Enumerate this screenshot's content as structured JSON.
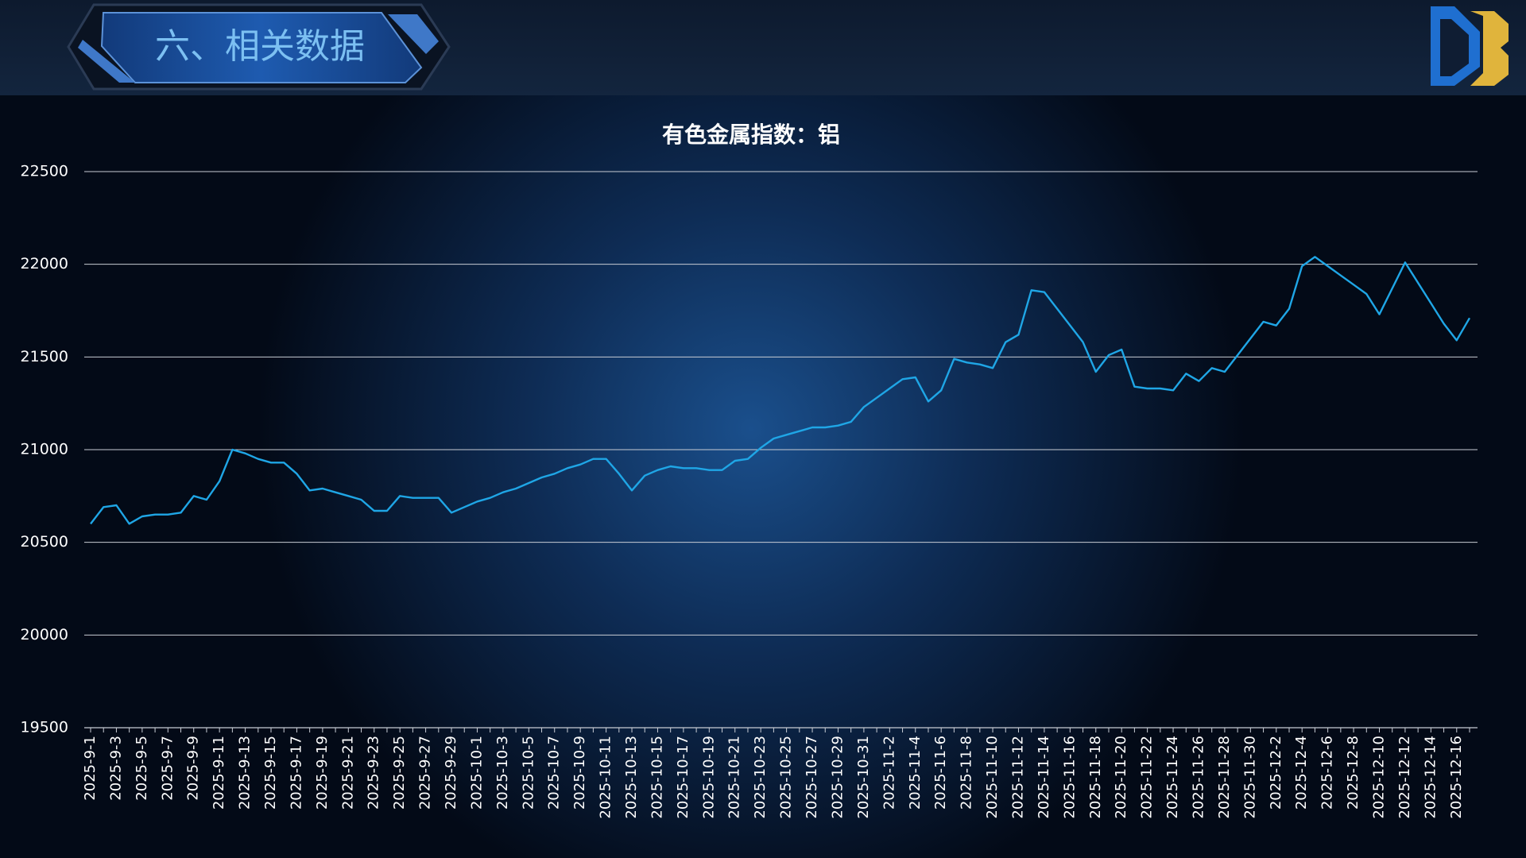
{
  "header": {
    "title": "六、相关数据"
  },
  "chart_data": {
    "type": "line",
    "title": "有色金属指数：铝",
    "categories": [
      "2025-9-1",
      null,
      "2025-9-3",
      null,
      "2025-9-5",
      null,
      "2025-9-7",
      null,
      "2025-9-9",
      null,
      "2025-9-11",
      null,
      "2025-9-13",
      null,
      "2025-9-15",
      null,
      "2025-9-17",
      null,
      "2025-9-19",
      null,
      "2025-9-21",
      null,
      "2025-9-23",
      null,
      "2025-9-25",
      null,
      "2025-9-27",
      null,
      "2025-9-29",
      null,
      "2025-10-1",
      null,
      "2025-10-3",
      null,
      "2025-10-5",
      null,
      "2025-10-7",
      null,
      "2025-10-9",
      null,
      "2025-10-11",
      null,
      "2025-10-13",
      null,
      "2025-10-15",
      null,
      "2025-10-17",
      null,
      "2025-10-19",
      null,
      "2025-10-21",
      null,
      "2025-10-23",
      null,
      "2025-10-25",
      null,
      "2025-10-27",
      null,
      "2025-10-29",
      null,
      "2025-10-31",
      null,
      "2025-11-2",
      null,
      "2025-11-4",
      null,
      "2025-11-6",
      null,
      "2025-11-8",
      null,
      "2025-11-10",
      null,
      "2025-11-12",
      null,
      "2025-11-14",
      null,
      "2025-11-16",
      null,
      "2025-11-18",
      null,
      "2025-11-20",
      null,
      "2025-11-22",
      null,
      "2025-11-24",
      null,
      "2025-11-26",
      null,
      "2025-11-28",
      null,
      "2025-11-30",
      null,
      "2025-12-2",
      null,
      "2025-12-4",
      null,
      "2025-12-6",
      null,
      "2025-12-8",
      null,
      "2025-12-10",
      null,
      "2025-12-12",
      null,
      "2025-12-14",
      null,
      "2025-12-16",
      null
    ],
    "values": [
      20600,
      20690,
      20700,
      20600,
      20640,
      20650,
      20650,
      20660,
      20750,
      20730,
      20830,
      21000,
      20980,
      20950,
      20930,
      20930,
      20870,
      20780,
      20790,
      20770,
      20750,
      20730,
      20670,
      20670,
      20750,
      20740,
      20740,
      20740,
      20660,
      20690,
      20720,
      20740,
      20770,
      20790,
      20820,
      20850,
      20870,
      20900,
      20920,
      20950,
      20950,
      20870,
      20780,
      20860,
      20890,
      20910,
      20900,
      20900,
      20890,
      20890,
      20940,
      20950,
      21010,
      21060,
      21080,
      21100,
      21120,
      21120,
      21130,
      21150,
      21230,
      21280,
      21330,
      21380,
      21390,
      21260,
      21320,
      21490,
      21470,
      21460,
      21440,
      21580,
      21620,
      21860,
      21850,
      21760,
      21670,
      21580,
      21420,
      21510,
      21540,
      21340,
      21330,
      21330,
      21320,
      21410,
      21370,
      21440,
      21420,
      21510,
      21600,
      21690,
      21670,
      21760,
      21990,
      22040,
      21990,
      21940,
      21890,
      21840,
      21730,
      21870,
      22010,
      21900,
      21790,
      21680,
      21590,
      21710
    ],
    "color": "#1fa6e6",
    "ylim": [
      19500,
      22500
    ],
    "yticks": [
      19500,
      20000,
      20500,
      21000,
      21500,
      22000,
      22500
    ],
    "grid": true
  }
}
